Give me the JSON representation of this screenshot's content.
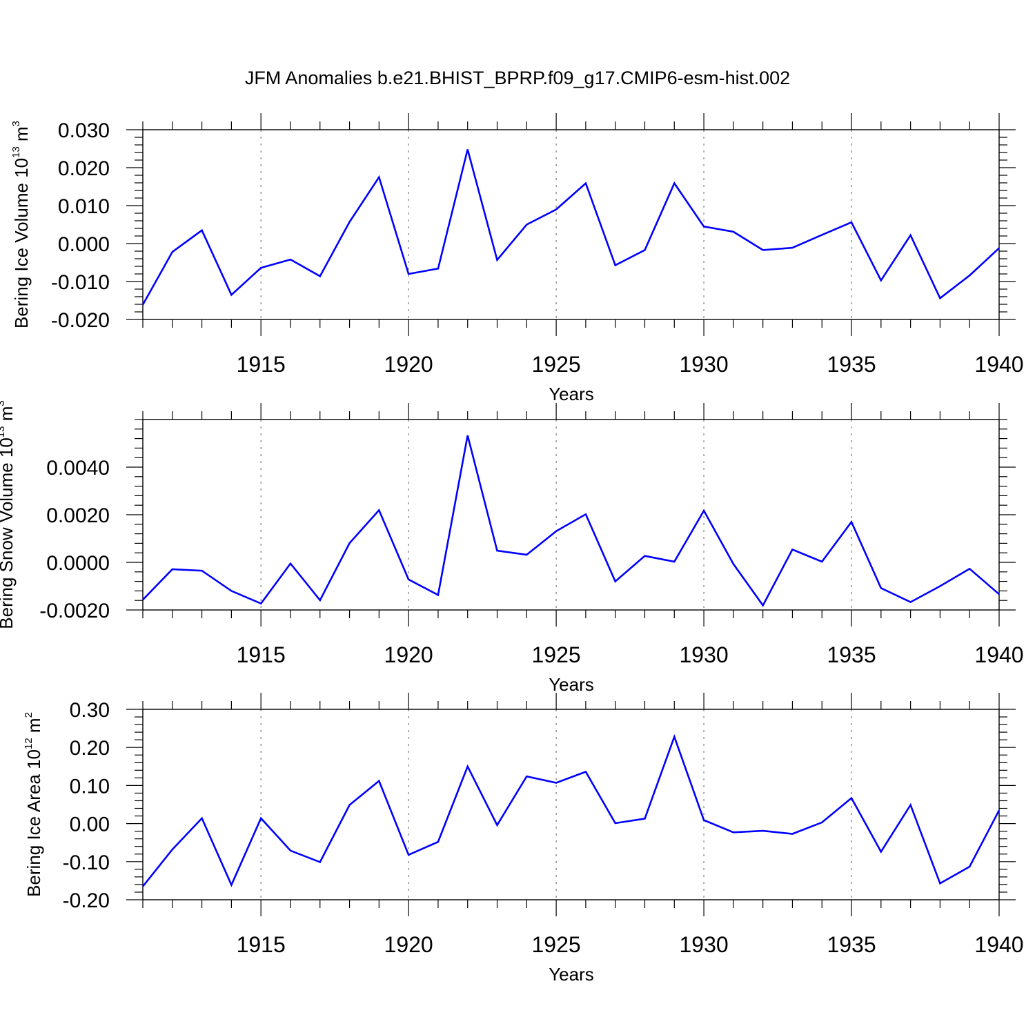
{
  "figure": {
    "title": "JFM Anomalies b.e21.BHIST_BPRP.f09_g17.CMIP6-esm-hist.002"
  },
  "chart_data": [
    {
      "type": "line",
      "ylabel": {
        "base": "Bering Ice Volume 10",
        "exp": "13",
        "unit": "m",
        "unit_exp": "3"
      },
      "xlabel": "Years",
      "xlim": [
        1911,
        1940
      ],
      "ylim": [
        -0.02,
        0.03
      ],
      "xticks": [
        1915,
        1920,
        1925,
        1930,
        1935,
        1940
      ],
      "xtick_labels": [
        "1915",
        "1920",
        "1925",
        "1930",
        "1935",
        "1940"
      ],
      "yticks": [
        -0.02,
        -0.01,
        0.0,
        0.01,
        0.02,
        0.03
      ],
      "ytick_labels": [
        "-0.020",
        "-0.010",
        "0.000",
        "0.010",
        "0.020",
        "0.030"
      ],
      "grid": "dashed vertical lines at major x ticks",
      "series_color": "#0000ff",
      "x": [
        1911,
        1912,
        1913,
        1914,
        1915,
        1916,
        1917,
        1918,
        1919,
        1920,
        1921,
        1922,
        1923,
        1924,
        1925,
        1926,
        1927,
        1928,
        1929,
        1930,
        1931,
        1932,
        1933,
        1934,
        1935,
        1936,
        1937,
        1938,
        1939,
        1940
      ],
      "y": [
        -0.0161,
        -0.0022,
        0.0035,
        -0.0135,
        -0.0064,
        -0.0042,
        -0.0086,
        0.0057,
        0.0175,
        -0.008,
        -0.0066,
        0.0248,
        -0.0043,
        0.005,
        0.009,
        0.0159,
        -0.0057,
        -0.0017,
        0.0159,
        0.0045,
        0.0031,
        -0.0017,
        -0.0011,
        0.0023,
        0.0056,
        -0.0097,
        0.0022,
        -0.0144,
        -0.0084,
        -0.0012
      ]
    },
    {
      "type": "line",
      "ylabel": {
        "base": "Bering Snow Volume 10",
        "exp": "13",
        "unit": "m",
        "unit_exp": "3"
      },
      "xlabel": "Years",
      "xlim": [
        1911,
        1940
      ],
      "ylim": [
        -0.002,
        0.006
      ],
      "xticks": [
        1915,
        1920,
        1925,
        1930,
        1935,
        1940
      ],
      "xtick_labels": [
        "1915",
        "1920",
        "1925",
        "1930",
        "1935",
        "1940"
      ],
      "yticks": [
        -0.002,
        0.0,
        0.002,
        0.004
      ],
      "ytick_labels": [
        "-0.0020",
        "0.0000",
        "0.0020",
        "0.0040"
      ],
      "grid": "dashed vertical lines at major x ticks",
      "series_color": "#0000ff",
      "x": [
        1911,
        1912,
        1913,
        1914,
        1915,
        1916,
        1917,
        1918,
        1919,
        1920,
        1921,
        1922,
        1923,
        1924,
        1925,
        1926,
        1927,
        1928,
        1929,
        1930,
        1931,
        1932,
        1933,
        1934,
        1935,
        1936,
        1937,
        1938,
        1939,
        1940
      ],
      "y": [
        -0.00157,
        -0.00029,
        -0.00035,
        -0.0012,
        -0.00173,
        -5e-05,
        -0.00159,
        0.00081,
        0.00219,
        -0.00072,
        -0.00137,
        0.00533,
        0.00049,
        0.00032,
        0.00131,
        0.00202,
        -0.0008,
        0.00027,
        3e-05,
        0.00217,
        -7e-05,
        -0.00181,
        0.00054,
        3e-05,
        0.0017,
        -0.00108,
        -0.00167,
        -0.001,
        -0.00027,
        -0.00134
      ]
    },
    {
      "type": "line",
      "ylabel": {
        "base": "Bering Ice Area 10",
        "exp": "12",
        "unit": "m",
        "unit_exp": "2"
      },
      "xlabel": "Years",
      "xlim": [
        1911,
        1940
      ],
      "ylim": [
        -0.2,
        0.3
      ],
      "xticks": [
        1915,
        1920,
        1925,
        1930,
        1935,
        1940
      ],
      "xtick_labels": [
        "1915",
        "1920",
        "1925",
        "1930",
        "1935",
        "1940"
      ],
      "yticks": [
        -0.2,
        -0.1,
        0.0,
        0.1,
        0.2,
        0.3
      ],
      "ytick_labels": [
        "-0.20",
        "-0.10",
        "0.00",
        "0.10",
        "0.20",
        "0.30"
      ],
      "grid": "dashed vertical lines at major x ticks",
      "series_color": "#0000ff",
      "x": [
        1911,
        1912,
        1913,
        1914,
        1915,
        1916,
        1917,
        1918,
        1919,
        1920,
        1921,
        1922,
        1923,
        1924,
        1925,
        1926,
        1927,
        1928,
        1929,
        1930,
        1931,
        1932,
        1933,
        1934,
        1935,
        1936,
        1937,
        1938,
        1939,
        1940
      ],
      "y": [
        -0.165,
        -0.068,
        0.014,
        -0.161,
        0.014,
        -0.071,
        -0.101,
        0.049,
        0.112,
        -0.082,
        -0.048,
        0.15,
        -0.004,
        0.124,
        0.107,
        0.136,
        0.001,
        0.013,
        0.228,
        0.009,
        -0.023,
        -0.019,
        -0.027,
        0.003,
        0.067,
        -0.074,
        0.049,
        -0.157,
        -0.113,
        0.035
      ]
    }
  ]
}
